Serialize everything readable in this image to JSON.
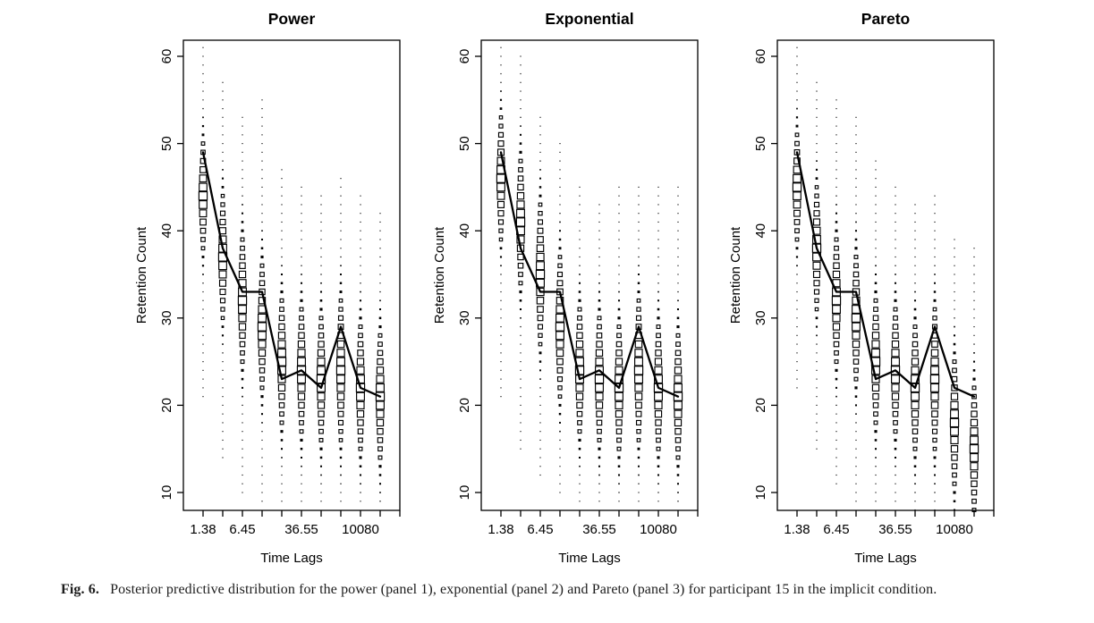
{
  "figure": {
    "caption_label": "Fig. 6.",
    "caption_text": "Posterior predictive distribution for the power (panel 1), exponential (panel 2) and Pareto (panel 3) for participant 15 in the implicit condition."
  },
  "style": {
    "ink_color": "#000000",
    "background": "#ffffff",
    "caption_color": "#1c1c1c"
  },
  "chart_data": [
    {
      "type": "scatter",
      "title": "Power",
      "xlabel": "Time Lags",
      "ylabel": "Retention Count",
      "ylim": [
        8,
        62
      ],
      "yticks": [
        10,
        20,
        30,
        40,
        50,
        60
      ],
      "x_tick_count": 11,
      "x_tick_labels": [
        {
          "index": 1,
          "label": "1.38"
        },
        {
          "index": 3,
          "label": "6.45"
        },
        {
          "index": 6,
          "label": "36.55"
        },
        {
          "index": 9,
          "label": "10080"
        }
      ],
      "line_values": [
        49,
        38,
        33,
        33,
        23,
        24,
        22,
        29,
        22,
        21
      ],
      "columns": [
        {
          "lo": 21,
          "hi": 61,
          "mode": 44,
          "sd": 5
        },
        {
          "lo": 14,
          "hi": 57,
          "mode": 37,
          "sd": 5.5
        },
        {
          "lo": 10,
          "hi": 53,
          "mode": 32,
          "sd": 6
        },
        {
          "lo": 9,
          "hi": 55,
          "mode": 29,
          "sd": 6
        },
        {
          "lo": 9,
          "hi": 47,
          "mode": 25,
          "sd": 6
        },
        {
          "lo": 9,
          "hi": 45,
          "mode": 24,
          "sd": 6
        },
        {
          "lo": 9,
          "hi": 44,
          "mode": 23,
          "sd": 6
        },
        {
          "lo": 9,
          "hi": 46,
          "mode": 24,
          "sd": 6.5
        },
        {
          "lo": 9,
          "hi": 44,
          "mode": 22,
          "sd": 6
        },
        {
          "lo": 9,
          "hi": 42,
          "mode": 21,
          "sd": 6
        }
      ]
    },
    {
      "type": "scatter",
      "title": "Exponential",
      "xlabel": "Time Lags",
      "ylabel": "Retention Count",
      "ylim": [
        8,
        62
      ],
      "yticks": [
        10,
        20,
        30,
        40,
        50,
        60
      ],
      "x_tick_count": 11,
      "x_tick_labels": [
        {
          "index": 1,
          "label": "1.38"
        },
        {
          "index": 3,
          "label": "6.45"
        },
        {
          "index": 6,
          "label": "36.55"
        },
        {
          "index": 9,
          "label": "10080"
        }
      ],
      "line_values": [
        49,
        38,
        33,
        33,
        23,
        24,
        22,
        29,
        22,
        21
      ],
      "columns": [
        {
          "lo": 21,
          "hi": 61,
          "mode": 46,
          "sd": 5.5
        },
        {
          "lo": 15,
          "hi": 60,
          "mode": 41,
          "sd": 6
        },
        {
          "lo": 12,
          "hi": 53,
          "mode": 35,
          "sd": 6.5
        },
        {
          "lo": 10,
          "hi": 50,
          "mode": 29,
          "sd": 6.5
        },
        {
          "lo": 9,
          "hi": 45,
          "mode": 24,
          "sd": 6
        },
        {
          "lo": 9,
          "hi": 43,
          "mode": 23,
          "sd": 6
        },
        {
          "lo": 9,
          "hi": 45,
          "mode": 22,
          "sd": 6
        },
        {
          "lo": 9,
          "hi": 45,
          "mode": 24,
          "sd": 6.5
        },
        {
          "lo": 9,
          "hi": 45,
          "mode": 22,
          "sd": 6
        },
        {
          "lo": 9,
          "hi": 45,
          "mode": 21,
          "sd": 6
        }
      ]
    },
    {
      "type": "scatter",
      "title": "Pareto",
      "xlabel": "Time Lags",
      "ylabel": "Retention Count",
      "ylim": [
        8,
        62
      ],
      "yticks": [
        10,
        20,
        30,
        40,
        50,
        60
      ],
      "x_tick_count": 11,
      "x_tick_labels": [
        {
          "index": 1,
          "label": "1.38"
        },
        {
          "index": 3,
          "label": "6.45"
        },
        {
          "index": 6,
          "label": "36.55"
        },
        {
          "index": 9,
          "label": "10080"
        }
      ],
      "line_values": [
        49,
        38,
        33,
        33,
        23,
        24,
        22,
        29,
        22,
        21
      ],
      "columns": [
        {
          "lo": 22,
          "hi": 61,
          "mode": 45,
          "sd": 5
        },
        {
          "lo": 15,
          "hi": 57,
          "mode": 38,
          "sd": 5.5
        },
        {
          "lo": 11,
          "hi": 55,
          "mode": 32,
          "sd": 6
        },
        {
          "lo": 9,
          "hi": 53,
          "mode": 30,
          "sd": 6
        },
        {
          "lo": 9,
          "hi": 48,
          "mode": 25,
          "sd": 6
        },
        {
          "lo": 9,
          "hi": 45,
          "mode": 24,
          "sd": 6
        },
        {
          "lo": 8,
          "hi": 43,
          "mode": 22,
          "sd": 6
        },
        {
          "lo": 8,
          "hi": 44,
          "mode": 23,
          "sd": 6.5
        },
        {
          "lo": 8,
          "hi": 39,
          "mode": 18,
          "sd": 6
        },
        {
          "lo": 8,
          "hi": 38,
          "mode": 15,
          "sd": 6
        }
      ]
    }
  ]
}
